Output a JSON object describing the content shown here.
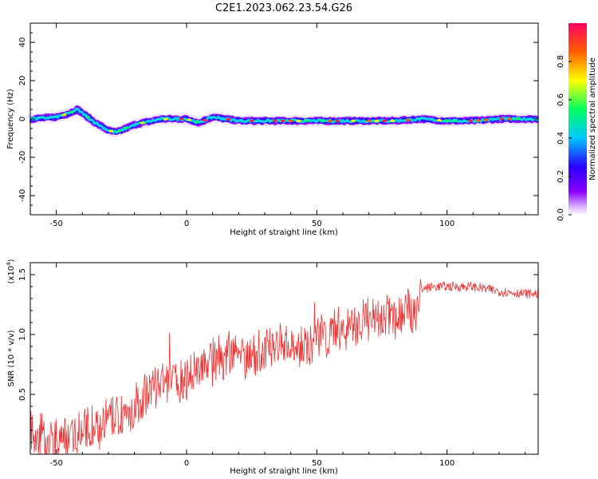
{
  "title": "C2E1.2023.062.23.54.G26",
  "chart_data": [
    {
      "type": "heatmap",
      "xlabel": "Height of straight line (km)",
      "ylabel": "Frequency (Hz)",
      "xlim": [
        -60,
        135
      ],
      "ylim": [
        -50,
        50
      ],
      "xticks": [
        -50,
        0,
        50,
        100
      ],
      "yticks": [
        -40,
        -20,
        0,
        20,
        40
      ],
      "colorbar": {
        "label": "Normalized spectral amplitude",
        "range": [
          0,
          1
        ],
        "ticks": [
          "0.0",
          "0.2",
          "0.4",
          "0.6",
          "0.8"
        ],
        "colors": [
          "#ffffff",
          "#8a00ff",
          "#2a00ff",
          "#00c8ff",
          "#00ff60",
          "#ffff00",
          "#ff6000",
          "#ff0060"
        ]
      },
      "ridge": {
        "height_km": [
          -60,
          -50,
          -45,
          -42,
          -40,
          -35,
          -30,
          -27,
          -20,
          -10,
          0,
          5,
          8,
          10,
          20,
          30,
          40,
          50,
          60,
          70,
          80,
          90,
          100,
          110,
          120,
          135
        ],
        "frequency_hz": [
          0,
          1,
          3,
          5,
          3,
          -2,
          -6,
          -7,
          -3,
          0,
          0,
          -2,
          0,
          1,
          -1,
          -1,
          -1,
          -1,
          -1,
          -1,
          -1,
          0,
          -1,
          -1,
          0,
          0
        ]
      }
    },
    {
      "type": "line",
      "xlabel": "Height of straight line (km)",
      "ylabel": "SNR (10 * v/v)",
      "yscale_label": "(x10",
      "yscale_exp": "4",
      "xlim": [
        -60,
        135
      ],
      "ylim": [
        0,
        1.6
      ],
      "xticks": [
        -50,
        0,
        50,
        100
      ],
      "yticks": [
        "0.5",
        "1.0",
        "1.5"
      ],
      "color": "#ee3333",
      "series": [
        {
          "x": [
            -60,
            -55,
            -50,
            -45,
            -40,
            -35,
            -30,
            -25,
            -20,
            -15,
            -10,
            -5,
            0,
            5,
            10,
            15,
            20,
            25,
            30,
            35,
            40,
            45,
            50,
            55,
            60,
            65,
            70,
            75,
            80,
            85,
            88,
            90,
            95,
            100,
            105,
            110,
            115,
            120,
            125,
            130,
            135
          ],
          "y": [
            0.2,
            0.12,
            0.1,
            0.15,
            0.2,
            0.22,
            0.28,
            0.32,
            0.38,
            0.5,
            0.58,
            0.62,
            0.62,
            0.75,
            0.78,
            0.8,
            0.85,
            0.82,
            0.85,
            0.95,
            0.9,
            0.9,
            1.0,
            1.0,
            1.05,
            1.08,
            1.12,
            1.12,
            1.15,
            1.18,
            1.2,
            1.38,
            1.4,
            1.4,
            1.4,
            1.4,
            1.38,
            1.36,
            1.35,
            1.34,
            1.34
          ]
        }
      ]
    }
  ]
}
